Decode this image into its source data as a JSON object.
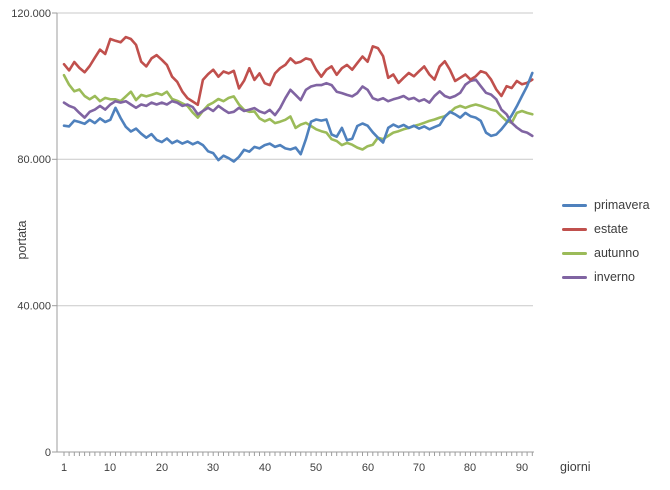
{
  "chart_data": {
    "type": "line",
    "title": "",
    "xlabel": "giorni",
    "ylabel": "portata",
    "x_range": [
      1,
      92
    ],
    "ylim": [
      0,
      120000
    ],
    "y_ticks": [
      0,
      40000,
      80000,
      120000
    ],
    "y_tick_labels": [
      "0",
      "40.000",
      "80.000",
      "120.000"
    ],
    "x_ticks": [
      1,
      10,
      20,
      30,
      40,
      50,
      60,
      70,
      80,
      90
    ],
    "x_tick_labels": [
      "1",
      "10",
      "20",
      "30",
      "40",
      "50",
      "60",
      "70",
      "80",
      "90"
    ],
    "grid": "horizontal-only",
    "legend_position": "right",
    "axis_color": "#9d9d9d",
    "gridline_color": "#c9c9c9",
    "series": [
      {
        "name": "primavera",
        "color": "#4f81bd",
        "values": [
          89200,
          89000,
          90600,
          90200,
          89700,
          90800,
          89900,
          91200,
          90200,
          90800,
          94100,
          91300,
          88900,
          87600,
          88400,
          87000,
          85900,
          86900,
          85300,
          84700,
          85700,
          84400,
          85100,
          84300,
          84900,
          84100,
          84700,
          83900,
          82200,
          81700,
          79800,
          81000,
          80300,
          79400,
          80700,
          82600,
          82100,
          83400,
          83000,
          83900,
          84300,
          83400,
          83900,
          83000,
          82700,
          83200,
          81400,
          85500,
          90300,
          90900,
          90600,
          90900,
          86800,
          86200,
          88600,
          85200,
          85600,
          89100,
          89800,
          89200,
          87400,
          85900,
          84600,
          88600,
          89500,
          88800,
          89400,
          88600,
          89200,
          88400,
          89000,
          88200,
          88800,
          89400,
          91600,
          93000,
          92300,
          91400,
          92700,
          91800,
          91400,
          90500,
          87300,
          86400,
          86800,
          88200,
          90000,
          92000,
          94500,
          97300,
          100000,
          103600
        ]
      },
      {
        "name": "estate",
        "color": "#c0504d",
        "values": [
          106000,
          104300,
          106600,
          105000,
          103800,
          105500,
          107800,
          110000,
          108800,
          112900,
          112400,
          112000,
          113400,
          112900,
          111300,
          106700,
          105400,
          107600,
          108500,
          107200,
          105800,
          102600,
          101200,
          98500,
          96700,
          95800,
          94900,
          101700,
          103300,
          104500,
          102600,
          104000,
          103500,
          104200,
          99400,
          101500,
          104900,
          101700,
          103500,
          100800,
          100300,
          103500,
          104900,
          105800,
          107600,
          106300,
          106700,
          107600,
          107200,
          104500,
          102600,
          104500,
          105400,
          103100,
          104900,
          105800,
          104500,
          106300,
          108100,
          106700,
          110900,
          110400,
          108200,
          102300,
          103200,
          100900,
          102300,
          103600,
          102700,
          104100,
          105400,
          103200,
          101800,
          105400,
          106800,
          104500,
          101400,
          102300,
          103200,
          101800,
          102700,
          104100,
          103600,
          101800,
          99100,
          97300,
          100000,
          99500,
          101400,
          100500,
          100900,
          101800
        ]
      },
      {
        "name": "autunno",
        "color": "#9bbb59",
        "values": [
          103000,
          100400,
          98600,
          99100,
          97300,
          96400,
          97300,
          95900,
          96800,
          96400,
          96400,
          95900,
          97200,
          98500,
          96200,
          97600,
          97200,
          97600,
          98100,
          97600,
          98500,
          96500,
          96000,
          95300,
          94600,
          92800,
          91400,
          93200,
          94800,
          95500,
          96500,
          95900,
          96800,
          97200,
          95000,
          93500,
          93000,
          93100,
          91200,
          90400,
          91000,
          89900,
          90300,
          90800,
          91700,
          88600,
          89500,
          90000,
          89100,
          88200,
          87700,
          87300,
          85500,
          85000,
          83900,
          84500,
          84000,
          83200,
          82700,
          83600,
          84000,
          85900,
          85500,
          86400,
          87300,
          87700,
          88200,
          88600,
          89100,
          89500,
          90000,
          90500,
          90900,
          91400,
          91800,
          92800,
          94100,
          94600,
          94100,
          94600,
          95000,
          94600,
          94100,
          93600,
          93200,
          91800,
          90500,
          90000,
          92700,
          93200,
          92700,
          92300
        ]
      },
      {
        "name": "inverno",
        "color": "#8064a2",
        "values": [
          95500,
          94600,
          94100,
          92700,
          91400,
          93000,
          93600,
          94600,
          93600,
          95000,
          95900,
          95500,
          95900,
          95000,
          94100,
          95000,
          94600,
          95500,
          95000,
          95500,
          95000,
          95900,
          95500,
          94600,
          95000,
          94300,
          92300,
          93200,
          94100,
          93200,
          94600,
          93600,
          92700,
          93000,
          94100,
          93200,
          93600,
          94000,
          93100,
          92600,
          93500,
          92100,
          94000,
          96700,
          99000,
          97600,
          96200,
          99000,
          99900,
          100300,
          100300,
          100800,
          100300,
          98500,
          98100,
          97600,
          97200,
          98100,
          99900,
          99000,
          96700,
          96200,
          96700,
          95900,
          96400,
          96800,
          97300,
          96400,
          96800,
          95900,
          96400,
          95500,
          97300,
          98600,
          97300,
          96800,
          97300,
          98200,
          100400,
          101400,
          101800,
          100000,
          98200,
          97700,
          96400,
          93600,
          92300,
          90000,
          88700,
          87700,
          87300,
          86400
        ]
      }
    ]
  }
}
